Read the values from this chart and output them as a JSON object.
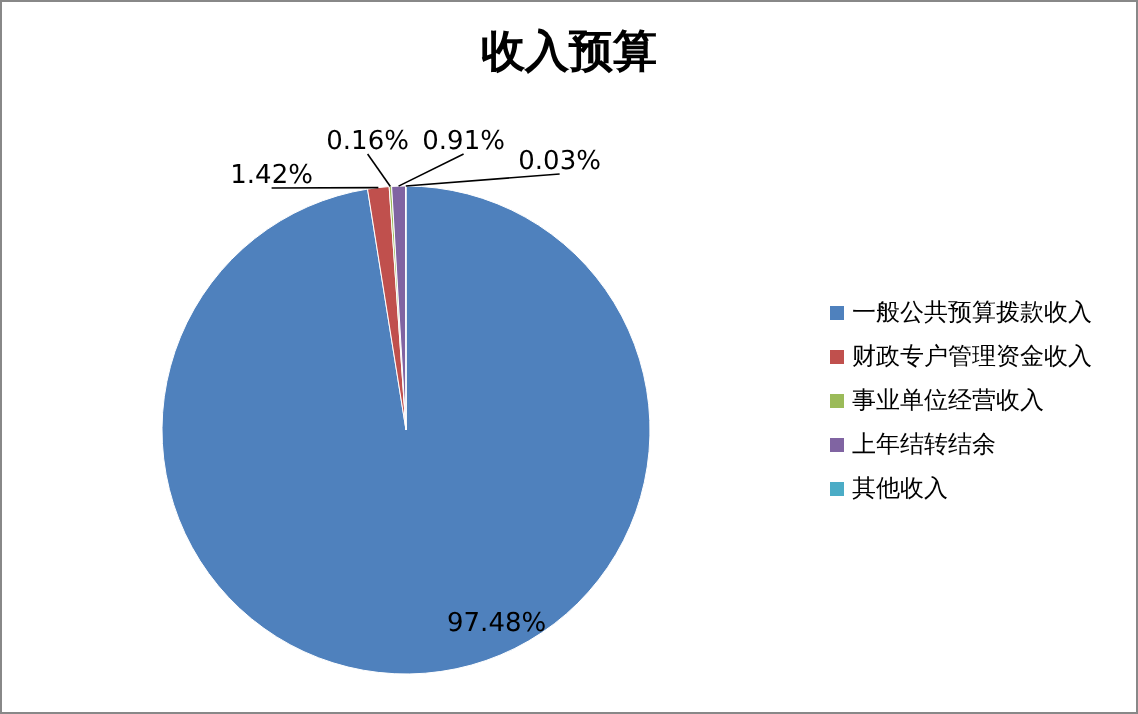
{
  "chart_data": {
    "type": "pie",
    "title": "收入预算",
    "categories": [
      "一般公共预算拨款收入",
      "财政专户管理资金收入",
      "事业单位经营收入",
      "上年结转结余",
      "其他收入"
    ],
    "values": [
      97.48,
      1.42,
      0.16,
      0.91,
      0.03
    ],
    "colors": [
      "#4f81bd",
      "#c0504d",
      "#9bbb59",
      "#8064a2",
      "#4bacc6"
    ],
    "value_labels": [
      "97.48%",
      "1.42%",
      "0.16%",
      "0.91%",
      "0.03%"
    ],
    "legend": "right"
  }
}
